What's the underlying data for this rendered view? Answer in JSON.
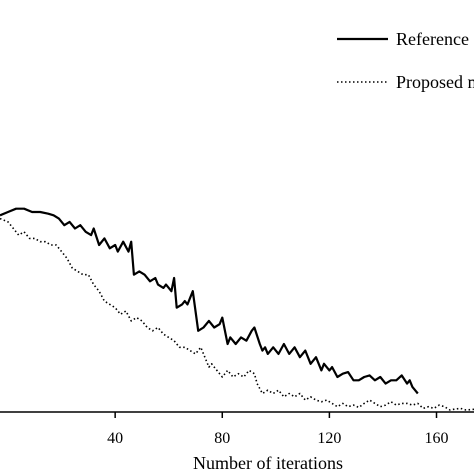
{
  "chart_data": {
    "type": "line",
    "title": "",
    "xlabel": "Number of iterations",
    "ylabel": "",
    "xlim": [
      -3,
      174
    ],
    "ylim": [
      0,
      100
    ],
    "x_ticks": [
      40,
      80,
      120,
      160
    ],
    "grid": false,
    "legend_position": "top-right",
    "series": [
      {
        "name": "Reference",
        "style": "solid",
        "color": "#000000",
        "points": [
          [
            -3,
            59
          ],
          [
            0,
            60
          ],
          [
            3,
            61
          ],
          [
            6,
            61
          ],
          [
            9,
            60
          ],
          [
            12,
            60
          ],
          [
            15,
            59.5
          ],
          [
            17,
            59
          ],
          [
            19,
            58
          ],
          [
            21,
            56
          ],
          [
            23,
            57
          ],
          [
            25,
            55
          ],
          [
            27,
            56
          ],
          [
            29,
            54
          ],
          [
            31,
            53
          ],
          [
            32,
            55
          ],
          [
            34,
            50
          ],
          [
            36,
            52
          ],
          [
            38,
            49
          ],
          [
            40,
            50
          ],
          [
            41,
            48
          ],
          [
            43,
            51
          ],
          [
            45,
            48
          ],
          [
            46,
            51
          ],
          [
            47,
            41
          ],
          [
            49,
            42
          ],
          [
            51,
            41
          ],
          [
            53,
            39
          ],
          [
            55,
            40
          ],
          [
            56,
            38
          ],
          [
            58,
            37
          ],
          [
            59,
            38
          ],
          [
            61,
            36
          ],
          [
            62,
            40
          ],
          [
            63,
            31
          ],
          [
            65,
            32
          ],
          [
            66,
            33
          ],
          [
            67,
            32
          ],
          [
            69,
            36
          ],
          [
            71,
            24
          ],
          [
            73,
            25
          ],
          [
            75,
            27
          ],
          [
            77,
            25
          ],
          [
            79,
            26
          ],
          [
            80,
            28
          ],
          [
            82,
            20
          ],
          [
            83,
            22
          ],
          [
            85,
            20
          ],
          [
            87,
            22
          ],
          [
            89,
            21
          ],
          [
            91,
            24
          ],
          [
            92,
            25
          ],
          [
            94,
            20
          ],
          [
            95,
            18
          ],
          [
            96,
            19
          ],
          [
            97,
            17
          ],
          [
            99,
            19
          ],
          [
            101,
            17
          ],
          [
            103,
            20
          ],
          [
            105,
            17
          ],
          [
            107,
            19
          ],
          [
            109,
            16
          ],
          [
            111,
            18
          ],
          [
            113,
            14
          ],
          [
            115,
            16
          ],
          [
            117,
            12
          ],
          [
            118,
            14
          ],
          [
            120,
            12
          ],
          [
            121,
            13
          ],
          [
            123,
            10
          ],
          [
            125,
            11
          ],
          [
            127,
            11.5
          ],
          [
            129,
            9
          ],
          [
            131,
            9
          ],
          [
            133,
            10
          ],
          [
            135,
            10.5
          ],
          [
            137,
            9
          ],
          [
            139,
            10
          ],
          [
            141,
            8
          ],
          [
            143,
            9
          ],
          [
            145,
            9
          ],
          [
            147,
            10.5
          ],
          [
            149,
            8
          ],
          [
            150,
            9
          ],
          [
            151,
            7
          ],
          [
            152,
            6
          ],
          [
            153,
            5
          ]
        ]
      },
      {
        "name": "Proposed m",
        "style": "dotted",
        "color": "#000000",
        "points": [
          [
            -3,
            58
          ],
          [
            0,
            57
          ],
          [
            2,
            55
          ],
          [
            4,
            53
          ],
          [
            6,
            54
          ],
          [
            8,
            52
          ],
          [
            10,
            52
          ],
          [
            12,
            51
          ],
          [
            14,
            51
          ],
          [
            16,
            50
          ],
          [
            18,
            50
          ],
          [
            20,
            48
          ],
          [
            22,
            46
          ],
          [
            24,
            43
          ],
          [
            26,
            42
          ],
          [
            28,
            41
          ],
          [
            30,
            41
          ],
          [
            32,
            38
          ],
          [
            34,
            36
          ],
          [
            36,
            33
          ],
          [
            38,
            32
          ],
          [
            40,
            31
          ],
          [
            42,
            29
          ],
          [
            44,
            30
          ],
          [
            46,
            27
          ],
          [
            48,
            28
          ],
          [
            50,
            27
          ],
          [
            52,
            25
          ],
          [
            54,
            24
          ],
          [
            56,
            25
          ],
          [
            58,
            23
          ],
          [
            60,
            22
          ],
          [
            62,
            21
          ],
          [
            64,
            19
          ],
          [
            66,
            19
          ],
          [
            68,
            18
          ],
          [
            70,
            17
          ],
          [
            72,
            19
          ],
          [
            74,
            15
          ],
          [
            75,
            13
          ],
          [
            76,
            14
          ],
          [
            78,
            12
          ],
          [
            80,
            10
          ],
          [
            82,
            12
          ],
          [
            84,
            10
          ],
          [
            86,
            11
          ],
          [
            88,
            10
          ],
          [
            90,
            12
          ],
          [
            92,
            11
          ],
          [
            93,
            8
          ],
          [
            95,
            5
          ],
          [
            97,
            6
          ],
          [
            99,
            5
          ],
          [
            101,
            6
          ],
          [
            103,
            4
          ],
          [
            105,
            5
          ],
          [
            107,
            4
          ],
          [
            109,
            5
          ],
          [
            111,
            3
          ],
          [
            113,
            4
          ],
          [
            115,
            3
          ],
          [
            117,
            2.5
          ],
          [
            119,
            3
          ],
          [
            121,
            2
          ],
          [
            123,
            1
          ],
          [
            125,
            2
          ],
          [
            127,
            1
          ],
          [
            129,
            1.5
          ],
          [
            131,
            0.8
          ],
          [
            133,
            2
          ],
          [
            135,
            3
          ],
          [
            137,
            2
          ],
          [
            139,
            1
          ],
          [
            141,
            1.5
          ],
          [
            143,
            2.5
          ],
          [
            145,
            1.5
          ],
          [
            147,
            2
          ],
          [
            149,
            2
          ],
          [
            151,
            1.5
          ],
          [
            153,
            2
          ],
          [
            155,
            0.5
          ],
          [
            157,
            1
          ],
          [
            159,
            0.5
          ],
          [
            161,
            1.5
          ],
          [
            163,
            1
          ],
          [
            165,
            0
          ],
          [
            167,
            0.3
          ],
          [
            169,
            0.5
          ],
          [
            171,
            0
          ],
          [
            174,
            0.2
          ]
        ]
      }
    ]
  }
}
